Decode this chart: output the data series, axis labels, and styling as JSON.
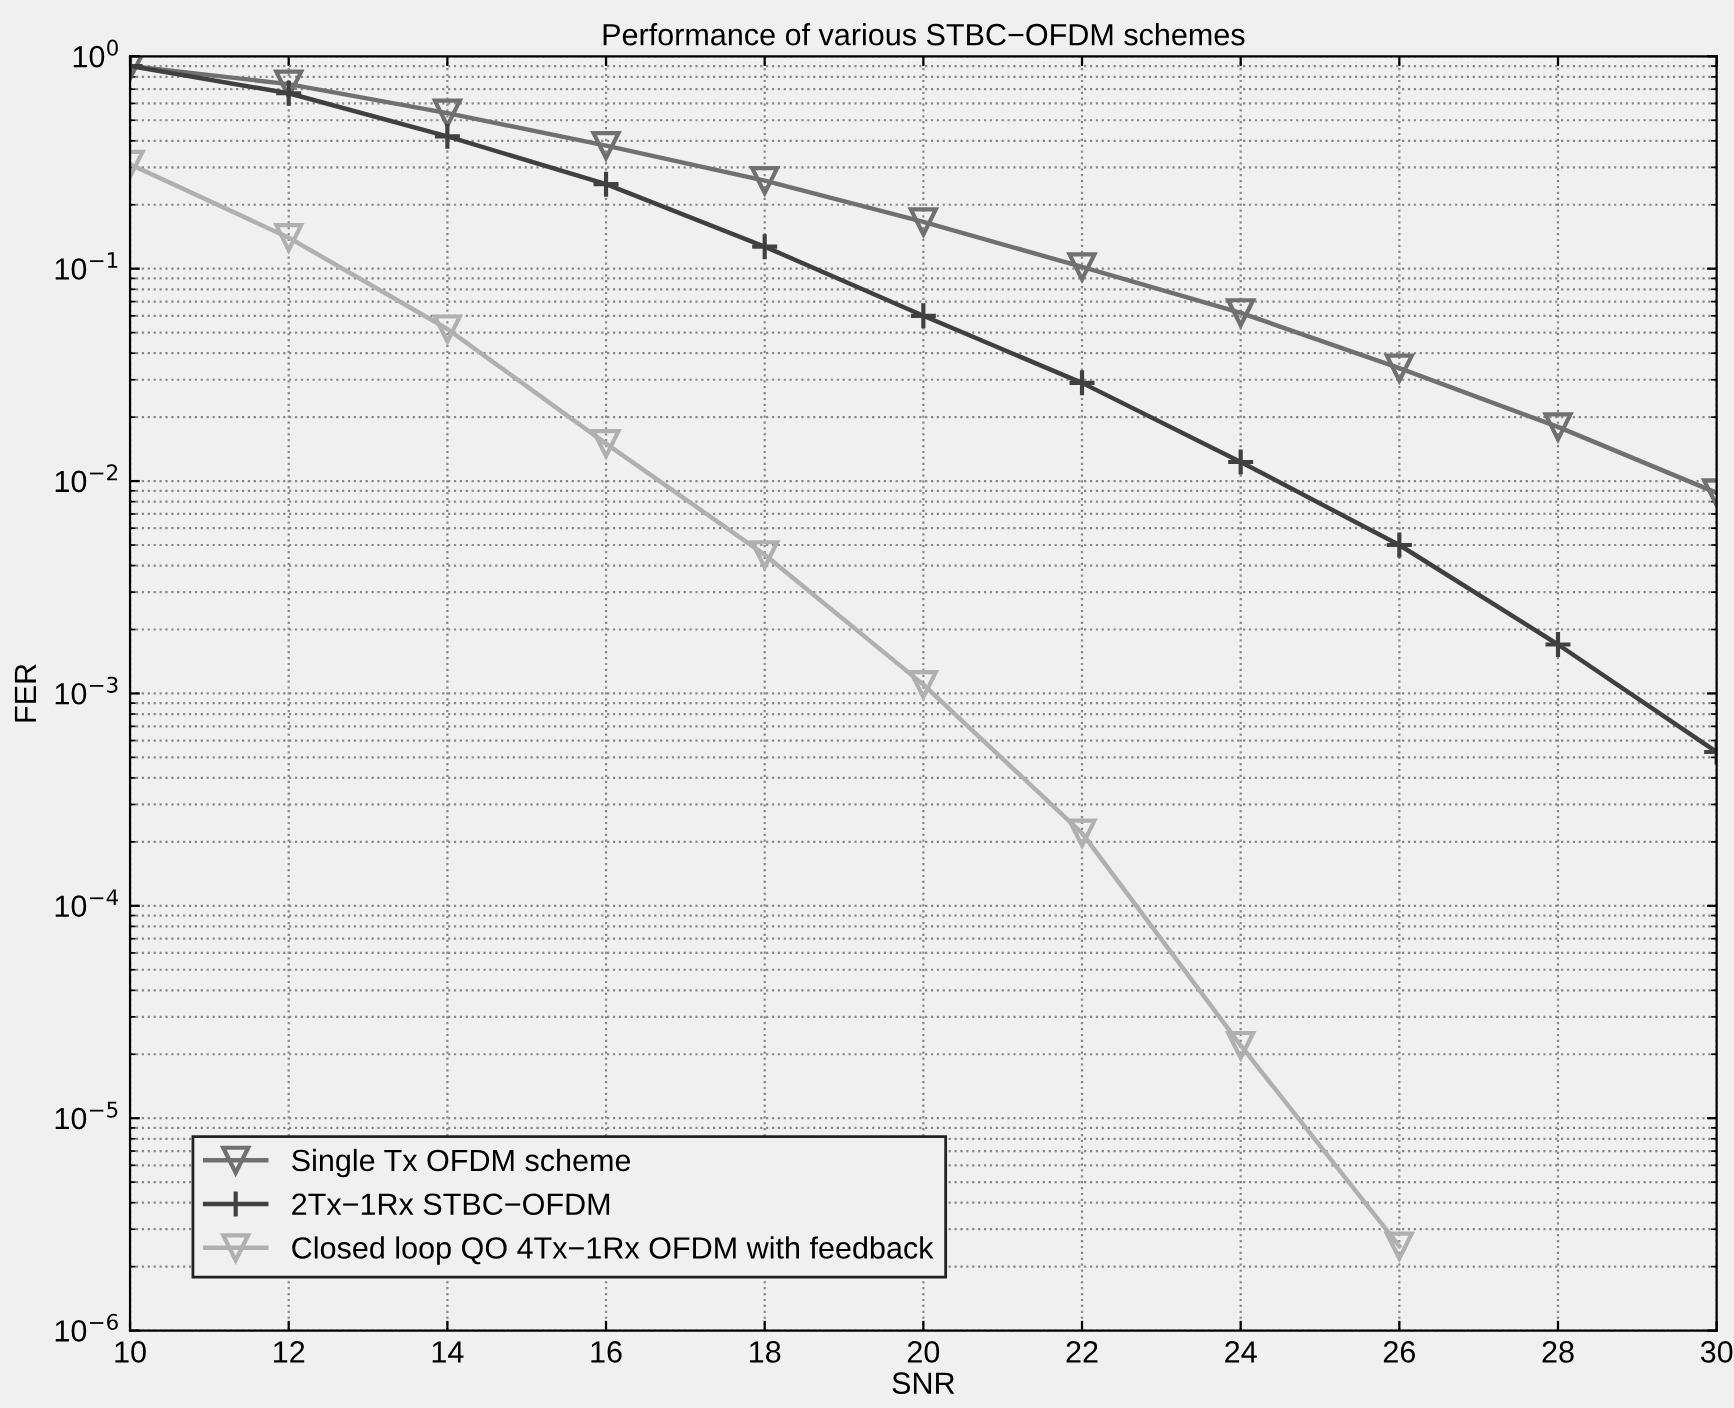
{
  "chart_data": {
    "type": "line",
    "title": "Performance of various STBC−OFDM schemes",
    "xlabel": "SNR",
    "ylabel": "FER",
    "x": [
      10,
      12,
      14,
      16,
      18,
      20,
      22,
      24,
      26,
      28,
      30
    ],
    "series": [
      {
        "name": "Single Tx OFDM scheme",
        "color": "#707070",
        "marker": "triangle",
        "values": [
          0.9,
          0.74,
          0.54,
          0.38,
          0.26,
          0.166,
          0.102,
          0.062,
          0.034,
          0.018,
          0.0088
        ]
      },
      {
        "name": "2Tx−1Rx STBC−OFDM",
        "color": "#404040",
        "marker": "cross",
        "values": [
          0.9,
          0.67,
          0.42,
          0.25,
          0.127,
          0.06,
          0.029,
          0.0123,
          0.005,
          0.0017,
          0.00053
        ]
      },
      {
        "name": "Closed loop QO 4Tx−1Rx OFDM with feedback",
        "color": "#b0b0b0",
        "marker": "triangle",
        "values": [
          0.31,
          0.14,
          0.052,
          0.015,
          0.0045,
          0.0011,
          0.00022,
          2.2e-05,
          2.5e-06,
          null,
          null
        ]
      }
    ],
    "log": "y",
    "grid": true,
    "legend": "bottom left",
    "line_style": "solid",
    "xlim": [
      10,
      30
    ],
    "xticks": [
      10,
      12,
      14,
      16,
      18,
      20,
      22,
      24,
      26,
      28,
      30
    ],
    "ylim": [
      1e-06,
      1
    ],
    "yticks": [
      {
        "value": 1e-06,
        "label": "10$^{−6}$"
      },
      {
        "value": 1e-05,
        "label": "10$^{−5}$"
      },
      {
        "value": 0.0001,
        "label": "10$^{−4}$"
      },
      {
        "value": 0.001,
        "label": "10$^{−3}$"
      },
      {
        "value": 0.01,
        "label": "10$^{−2}$"
      },
      {
        "value": 0.1,
        "label": "10$^{−1}$"
      },
      {
        "value": 1,
        "label": "10$^{0}$"
      }
    ]
  }
}
